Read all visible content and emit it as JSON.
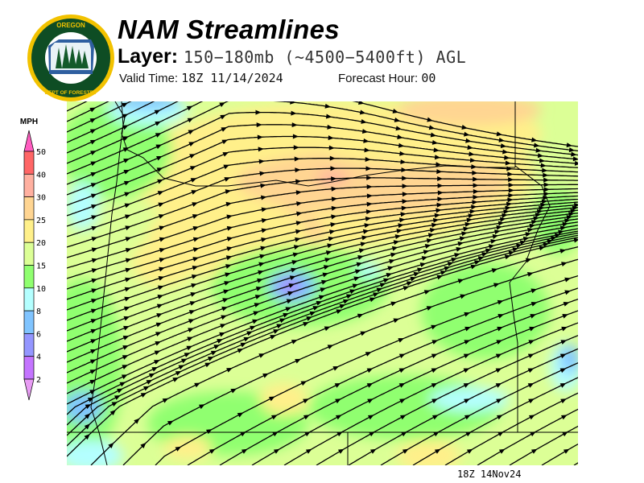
{
  "logo": {
    "text_top": "OREGON",
    "text_bottom": "DEPARTMENT OF FORESTRY"
  },
  "header": {
    "title": "NAM Streamlines",
    "layer_label": "Layer:",
    "layer_value": "150−180mb (~4500−5400ft) AGL",
    "valid_label": "Valid Time:",
    "valid_value": "18Z 11/14/2024",
    "forecast_hour_label": "Forecast Hour:",
    "forecast_hour_value": "00"
  },
  "colorbar": {
    "unit": "MPH",
    "labels": [
      "50",
      "40",
      "30",
      "25",
      "20",
      "15",
      "10",
      "8",
      "6",
      "4",
      "2"
    ],
    "colors": [
      "#ff6666",
      "#ffb0a0",
      "#ffd592",
      "#fff08a",
      "#dcff96",
      "#90ff70",
      "#b4ffff",
      "#80c4ff",
      "#9496ff",
      "#c474ff"
    ],
    "over_color": "#ff5cc0",
    "under_color": "#e89cf4"
  },
  "footer": {
    "stamp": "18Z 14Nov24"
  }
}
